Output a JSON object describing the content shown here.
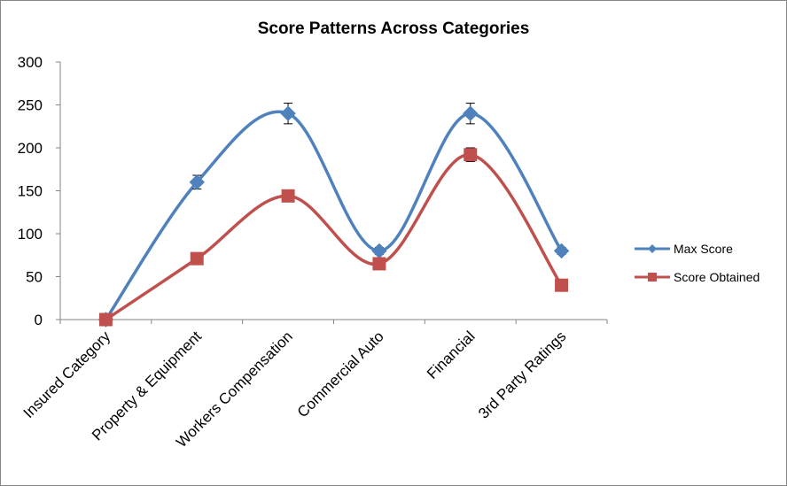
{
  "chart_data": {
    "type": "line",
    "title": "Score Patterns Across Categories",
    "categories": [
      "Insured Category",
      "Property & Equipment",
      "Workers Compensation",
      "Commercial Auto",
      "Financial",
      "3rd Party Ratings"
    ],
    "ylim": [
      0,
      300
    ],
    "yticks": [
      0,
      50,
      100,
      150,
      200,
      250,
      300
    ],
    "grid": false,
    "smooth": true,
    "legend_position": "right",
    "series": [
      {
        "name": "Max Score",
        "values": [
          0,
          160,
          240,
          80,
          240,
          80
        ],
        "color": "#4F81BD",
        "marker": "diamond",
        "error_bars": [
          0,
          8,
          12,
          4,
          12,
          4
        ]
      },
      {
        "name": "Score Obtained",
        "values": [
          0,
          71,
          144,
          65,
          192,
          40
        ],
        "color": "#C0504D",
        "marker": "square",
        "error_bars": [
          0,
          3,
          5,
          3,
          8,
          2
        ]
      }
    ]
  }
}
